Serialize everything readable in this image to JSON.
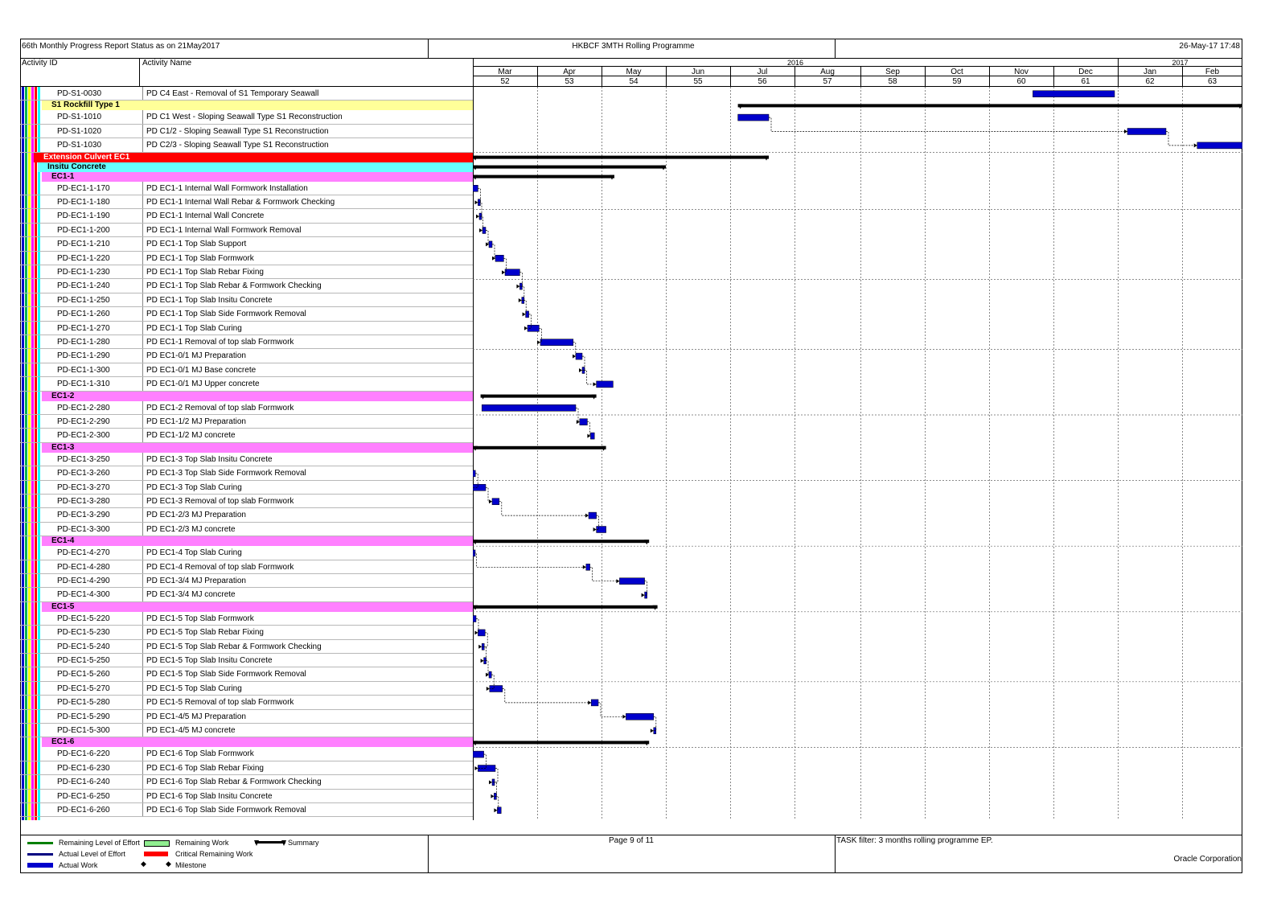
{
  "header": {
    "left": "66th Monthly Progress Report Status as on 21May2017",
    "center": "HKBCF 3MTH Rolling Programme",
    "right": "26-May-17 17:48"
  },
  "columns": {
    "activity_id": "Activity ID",
    "activity_name": "Activity Name"
  },
  "timeline": {
    "years": [
      {
        "label": "2016",
        "start": 0,
        "end": 10
      },
      {
        "label": "2017",
        "start": 10,
        "end": 12
      }
    ],
    "months": [
      {
        "label": "Mar",
        "week": "52"
      },
      {
        "label": "Apr",
        "week": "53"
      },
      {
        "label": "May",
        "week": "54"
      },
      {
        "label": "Jun",
        "week": "55"
      },
      {
        "label": "Jul",
        "week": "56"
      },
      {
        "label": "Aug",
        "week": "57"
      },
      {
        "label": "Sep",
        "week": "58"
      },
      {
        "label": "Oct",
        "week": "59"
      },
      {
        "label": "Nov",
        "week": "60"
      },
      {
        "label": "Dec",
        "week": "61"
      },
      {
        "label": "Jan",
        "week": "62"
      },
      {
        "label": "Feb",
        "week": "63"
      }
    ]
  },
  "rows": [
    {
      "kind": "act",
      "id": "PD-S1-0030",
      "name": "PD C4 East - Removal of S1 Temporary Seawall",
      "bar": [
        8.68,
        9.95
      ]
    },
    {
      "kind": "group",
      "name": "S1 Rockfill Type 1",
      "color": "#ffff99",
      "level": 2,
      "summary": [
        4.12,
        12.0
      ]
    },
    {
      "kind": "act",
      "id": "PD-S1-1010",
      "name": "PD C1 West - Sloping Seawall Type S1 Reconstruction",
      "bar": [
        4.12,
        4.6
      ]
    },
    {
      "kind": "act",
      "id": "PD-S1-1020",
      "name": "PD C1/2 - Sloping Seawall Type S1 Reconstruction",
      "bar": [
        10.15,
        10.75
      ]
    },
    {
      "kind": "act",
      "id": "PD-S1-1030",
      "name": "PD C2/3 - Sloping Seawall Type S1 Reconstruction",
      "bar": [
        11.25,
        12.0
      ]
    },
    {
      "kind": "group",
      "name": "Extension Culvert EC1",
      "color": "#ff0000",
      "textColor": "#ffffff",
      "level": 0,
      "summary": [
        0,
        4.6
      ]
    },
    {
      "kind": "group",
      "name": "Insitu Concrete",
      "color": "#66ffff",
      "level": 1,
      "summary": [
        0,
        3.0
      ]
    },
    {
      "kind": "group",
      "name": "EC1-1",
      "color": "#ff80ff",
      "level": 2,
      "summary": [
        0,
        2.2
      ]
    },
    {
      "kind": "act",
      "id": "PD-EC1-1-170",
      "name": "PD EC1-1 Internal Wall Formwork Installation",
      "bar": [
        0.0,
        0.08
      ]
    },
    {
      "kind": "act",
      "id": "PD-EC1-1-180",
      "name": "PD EC1-1 Internal Wall Rebar & Formwork Checking",
      "bar": [
        0.08,
        0.1
      ]
    },
    {
      "kind": "act",
      "id": "PD-EC1-1-190",
      "name": "PD EC1-1 Internal Wall Concrete",
      "bar": [
        0.1,
        0.12
      ]
    },
    {
      "kind": "act",
      "id": "PD-EC1-1-200",
      "name": "PD EC1-1 Internal Wall Formwork Removal",
      "bar": [
        0.15,
        0.2
      ]
    },
    {
      "kind": "act",
      "id": "PD-EC1-1-210",
      "name": "PD EC1-1 Top Slab Support",
      "bar": [
        0.25,
        0.3
      ]
    },
    {
      "kind": "act",
      "id": "PD-EC1-1-220",
      "name": "PD EC1-1 Top Slab Formwork",
      "bar": [
        0.35,
        0.48
      ]
    },
    {
      "kind": "act",
      "id": "PD-EC1-1-230",
      "name": "PD EC1-1 Top Slab Rebar Fixing",
      "bar": [
        0.5,
        0.73
      ]
    },
    {
      "kind": "act",
      "id": "PD-EC1-1-240",
      "name": "PD EC1-1 Top Slab Rebar & Formwork Checking",
      "bar": [
        0.73,
        0.76
      ]
    },
    {
      "kind": "act",
      "id": "PD-EC1-1-250",
      "name": "PD EC1-1 Top Slab Insitu Concrete",
      "bar": [
        0.76,
        0.79
      ]
    },
    {
      "kind": "act",
      "id": "PD-EC1-1-260",
      "name": "PD EC1-1 Top Slab Side Formwork Removal",
      "bar": [
        0.82,
        0.87
      ]
    },
    {
      "kind": "act",
      "id": "PD-EC1-1-270",
      "name": "PD EC1-1 Top Slab Curing",
      "bar": [
        0.85,
        1.03
      ]
    },
    {
      "kind": "act",
      "id": "PD-EC1-1-280",
      "name": "PD EC1-1 Removal of top slab Formwork",
      "bar": [
        1.05,
        1.56
      ]
    },
    {
      "kind": "act",
      "id": "PD-EC1-1-290",
      "name": "PD EC1-0/1 MJ Preparation",
      "bar": [
        1.6,
        1.7
      ]
    },
    {
      "kind": "act",
      "id": "PD-EC1-1-300",
      "name": "PD EC1-0/1 MJ Base concrete",
      "bar": [
        1.7,
        1.73
      ]
    },
    {
      "kind": "act",
      "id": "PD-EC1-1-310",
      "name": "PD EC1-0/1 MJ Upper concrete",
      "bar": [
        1.92,
        2.18
      ]
    },
    {
      "kind": "group",
      "name": "EC1-2",
      "color": "#ff80ff",
      "level": 2,
      "summary": [
        0.12,
        1.92
      ]
    },
    {
      "kind": "act",
      "id": "PD-EC1-2-280",
      "name": "PD EC1-2 Removal of top slab Formwork",
      "bar": [
        0.14,
        1.6
      ]
    },
    {
      "kind": "act",
      "id": "PD-EC1-2-290",
      "name": "PD EC1-1/2 MJ Preparation",
      "bar": [
        1.66,
        1.78
      ]
    },
    {
      "kind": "act",
      "id": "PD-EC1-2-300",
      "name": "PD EC1-1/2 MJ concrete",
      "bar": [
        1.83,
        1.89
      ]
    },
    {
      "kind": "group",
      "name": "EC1-3",
      "color": "#ff80ff",
      "level": 2,
      "summary": [
        0,
        2.07
      ]
    },
    {
      "kind": "act",
      "id": "PD-EC1-3-250",
      "name": "PD EC1-3 Top Slab Insitu Concrete",
      "bar": null
    },
    {
      "kind": "act",
      "id": "PD-EC1-3-260",
      "name": "PD EC1-3 Top Slab Side Formwork Removal",
      "bar": [
        0.0,
        0.04
      ]
    },
    {
      "kind": "act",
      "id": "PD-EC1-3-270",
      "name": "PD EC1-3 Top Slab Curing",
      "bar": [
        0.0,
        0.2
      ]
    },
    {
      "kind": "act",
      "id": "PD-EC1-3-280",
      "name": "PD EC1-3 Removal of top slab Formwork",
      "bar": [
        0.3,
        0.41
      ]
    },
    {
      "kind": "act",
      "id": "PD-EC1-3-290",
      "name": "PD EC1-2/3 MJ Preparation",
      "bar": [
        1.8,
        1.92
      ]
    },
    {
      "kind": "act",
      "id": "PD-EC1-3-300",
      "name": "PD EC1-2/3 MJ concrete",
      "bar": [
        1.92,
        2.07
      ]
    },
    {
      "kind": "group",
      "name": "EC1-4",
      "color": "#ff80ff",
      "level": 2,
      "summary": [
        0,
        2.74
      ]
    },
    {
      "kind": "act",
      "id": "PD-EC1-4-270",
      "name": "PD EC1-4 Top Slab Curing",
      "bar": [
        0.0,
        0.02
      ]
    },
    {
      "kind": "act",
      "id": "PD-EC1-4-280",
      "name": "PD EC1-4 Removal of top slab Formwork",
      "bar": [
        1.76,
        1.82
      ]
    },
    {
      "kind": "act",
      "id": "PD-EC1-4-290",
      "name": "PD EC1-3/4 MJ Preparation",
      "bar": [
        2.28,
        2.67
      ]
    },
    {
      "kind": "act",
      "id": "PD-EC1-4-300",
      "name": "PD EC1-3/4 MJ concrete",
      "bar": [
        2.67,
        2.7
      ]
    },
    {
      "kind": "group",
      "name": "EC1-5",
      "color": "#ff80ff",
      "level": 2,
      "summary": [
        0,
        2.87
      ]
    },
    {
      "kind": "act",
      "id": "PD-EC1-5-220",
      "name": "PD EC1-5 Top Slab Formwork",
      "bar": [
        0.0,
        0.05
      ]
    },
    {
      "kind": "act",
      "id": "PD-EC1-5-230",
      "name": "PD EC1-5 Top Slab Rebar Fixing",
      "bar": [
        0.08,
        0.19
      ]
    },
    {
      "kind": "act",
      "id": "PD-EC1-5-240",
      "name": "PD EC1-5 Top Slab Rebar & Formwork Checking",
      "bar": [
        0.14,
        0.17
      ]
    },
    {
      "kind": "act",
      "id": "PD-EC1-5-250",
      "name": "PD EC1-5 Top Slab Insitu Concrete",
      "bar": [
        0.17,
        0.2
      ]
    },
    {
      "kind": "act",
      "id": "PD-EC1-5-260",
      "name": "PD EC1-5 Top Slab Side Formwork Removal",
      "bar": [
        0.25,
        0.29
      ]
    },
    {
      "kind": "act",
      "id": "PD-EC1-5-270",
      "name": "PD EC1-5 Top Slab Curing",
      "bar": [
        0.26,
        0.46
      ]
    },
    {
      "kind": "act",
      "id": "PD-EC1-5-280",
      "name": "PD EC1-5 Removal of top slab Formwork",
      "bar": [
        1.84,
        1.95
      ]
    },
    {
      "kind": "act",
      "id": "PD-EC1-5-290",
      "name": "PD EC1-4/5 MJ Preparation",
      "bar": [
        2.38,
        2.81
      ]
    },
    {
      "kind": "act",
      "id": "PD-EC1-5-300",
      "name": "PD EC1-4/5 MJ concrete",
      "bar": [
        2.81,
        2.84
      ]
    },
    {
      "kind": "group",
      "name": "EC1-6",
      "color": "#ff80ff",
      "level": 2,
      "summary": [
        0,
        2.74
      ]
    },
    {
      "kind": "act",
      "id": "PD-EC1-6-220",
      "name": "PD EC1-6 Top Slab Formwork",
      "bar": [
        0.0,
        0.17
      ]
    },
    {
      "kind": "act",
      "id": "PD-EC1-6-230",
      "name": "PD EC1-6 Top Slab Rebar Fixing",
      "bar": [
        0.08,
        0.35
      ]
    },
    {
      "kind": "act",
      "id": "PD-EC1-6-240",
      "name": "PD EC1-6 Top Slab Rebar & Formwork Checking",
      "bar": [
        0.3,
        0.33
      ]
    },
    {
      "kind": "act",
      "id": "PD-EC1-6-250",
      "name": "PD EC1-6 Top Slab Insitu Concrete",
      "bar": [
        0.33,
        0.36
      ]
    },
    {
      "kind": "act",
      "id": "PD-EC1-6-260",
      "name": "PD EC1-6 Top Slab Side Formwork Removal",
      "bar": [
        0.38,
        0.44
      ]
    }
  ],
  "legend": [
    {
      "label": "Remaining Level of Effort",
      "color": "#008000"
    },
    {
      "label": "Actual Level of Effort",
      "color": "#000080"
    },
    {
      "label": "Actual Work",
      "color": "#0000cc"
    },
    {
      "label": "Remaining Work",
      "color": "#90ee90"
    },
    {
      "label": "Critical Remaining Work",
      "color": "#ff0000"
    },
    {
      "label": "Milestone",
      "color": "#000000"
    },
    {
      "label": "Summary",
      "color": "#000000"
    }
  ],
  "footer": {
    "page": "Page 9 of 11",
    "filter": "TASK filter: 3 months rolling programme EP.",
    "company": "Oracle Corporation"
  },
  "colors": {
    "actual_work": "#0000cc",
    "summary": "#000000"
  }
}
